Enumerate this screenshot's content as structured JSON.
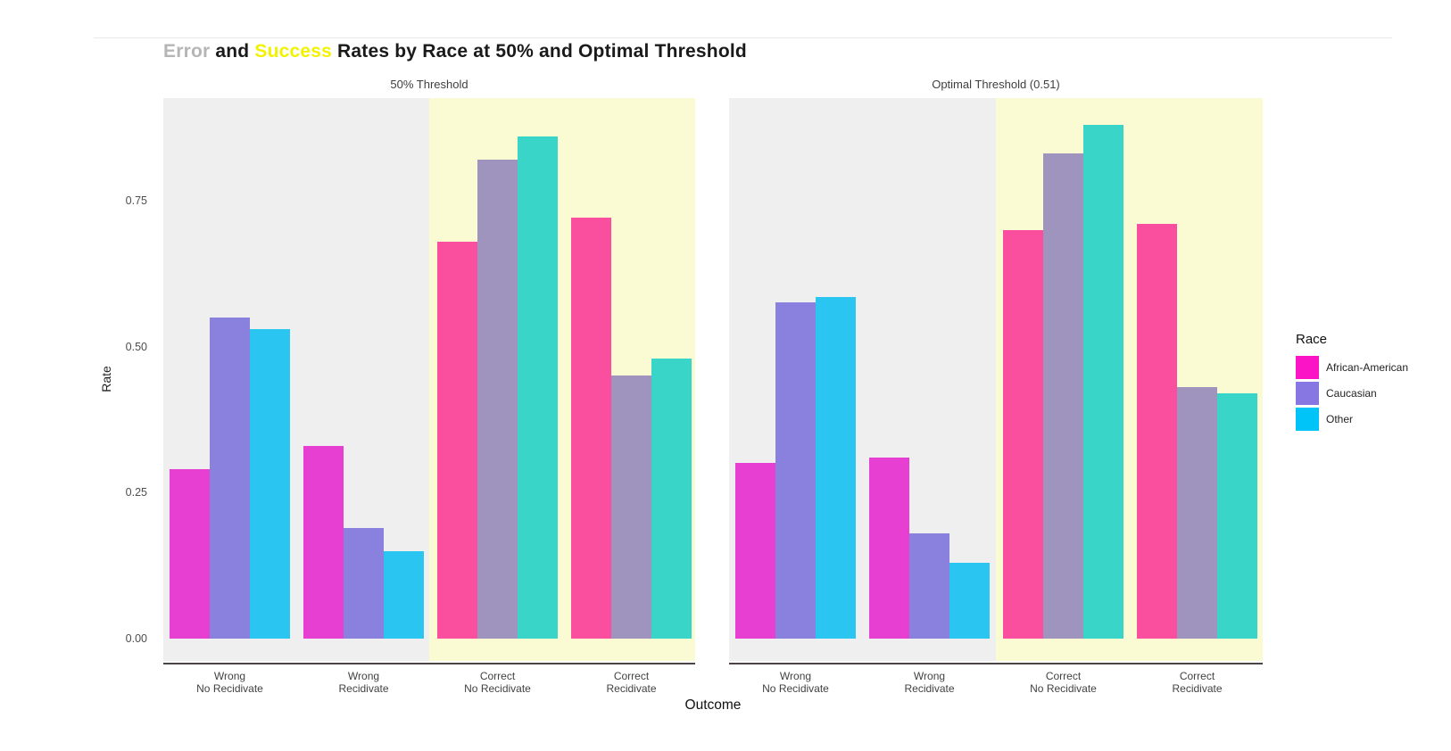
{
  "title": {
    "parts": [
      {
        "text": "Error ",
        "color": "#b5b5b5"
      },
      {
        "text": "and ",
        "color": "#1a1a1a"
      },
      {
        "text": "Success",
        "color": "#f2f200"
      },
      {
        "text": " Rates by Race at 50% and Optimal Threshold",
        "color": "#1a1a1a"
      }
    ]
  },
  "chart_data": {
    "type": "bar",
    "title": "Error and Success Rates by Race at 50% and Optimal Threshold",
    "xlabel": "Outcome",
    "ylabel": "Rate",
    "ylim": [
      0,
      0.93
    ],
    "yticks": [
      0,
      0.25,
      0.5,
      0.75
    ],
    "ytick_labels": [
      "0.00",
      "0.25",
      "0.50",
      "0.75"
    ],
    "categories": [
      "Wrong\nNo Recidivate",
      "Wrong\nRecidivate",
      "Correct\nNo Recidivate",
      "Correct\nRecidivate"
    ],
    "grid": false,
    "legend": {
      "title": "Race",
      "position": "right",
      "entries": [
        {
          "label": "African-American",
          "color": "#fa14c5"
        },
        {
          "label": "Caucasian",
          "color": "#8677e3"
        },
        {
          "label": "Other",
          "color": "#00c3f8"
        }
      ]
    },
    "facets": [
      {
        "title": "50% Threshold",
        "series": [
          {
            "name": "African-American",
            "values": [
              0.29,
              0.33,
              0.68,
              0.72
            ]
          },
          {
            "name": "Caucasian",
            "values": [
              0.55,
              0.19,
              0.82,
              0.45
            ]
          },
          {
            "name": "Other",
            "values": [
              0.53,
              0.15,
              0.86,
              0.48
            ]
          }
        ]
      },
      {
        "title": "Optimal Threshold (0.51)",
        "series": [
          {
            "name": "African-American",
            "values": [
              0.3,
              0.31,
              0.7,
              0.71
            ]
          },
          {
            "name": "Caucasian",
            "values": [
              0.575,
              0.18,
              0.83,
              0.43
            ]
          },
          {
            "name": "Other",
            "values": [
              0.585,
              0.13,
              0.88,
              0.42
            ]
          }
        ]
      }
    ],
    "background_bands": {
      "wrong": "#efeff0",
      "correct": "#fbfbd3"
    },
    "bar_colors": {
      "wrong": {
        "African-American": "#e73fd2",
        "Caucasian": "#8a80de",
        "Other": "#2ac5f0"
      },
      "correct": {
        "African-American": "#fa4f9e",
        "Caucasian": "#9f94bd",
        "Other": "#38d5c8"
      }
    }
  }
}
